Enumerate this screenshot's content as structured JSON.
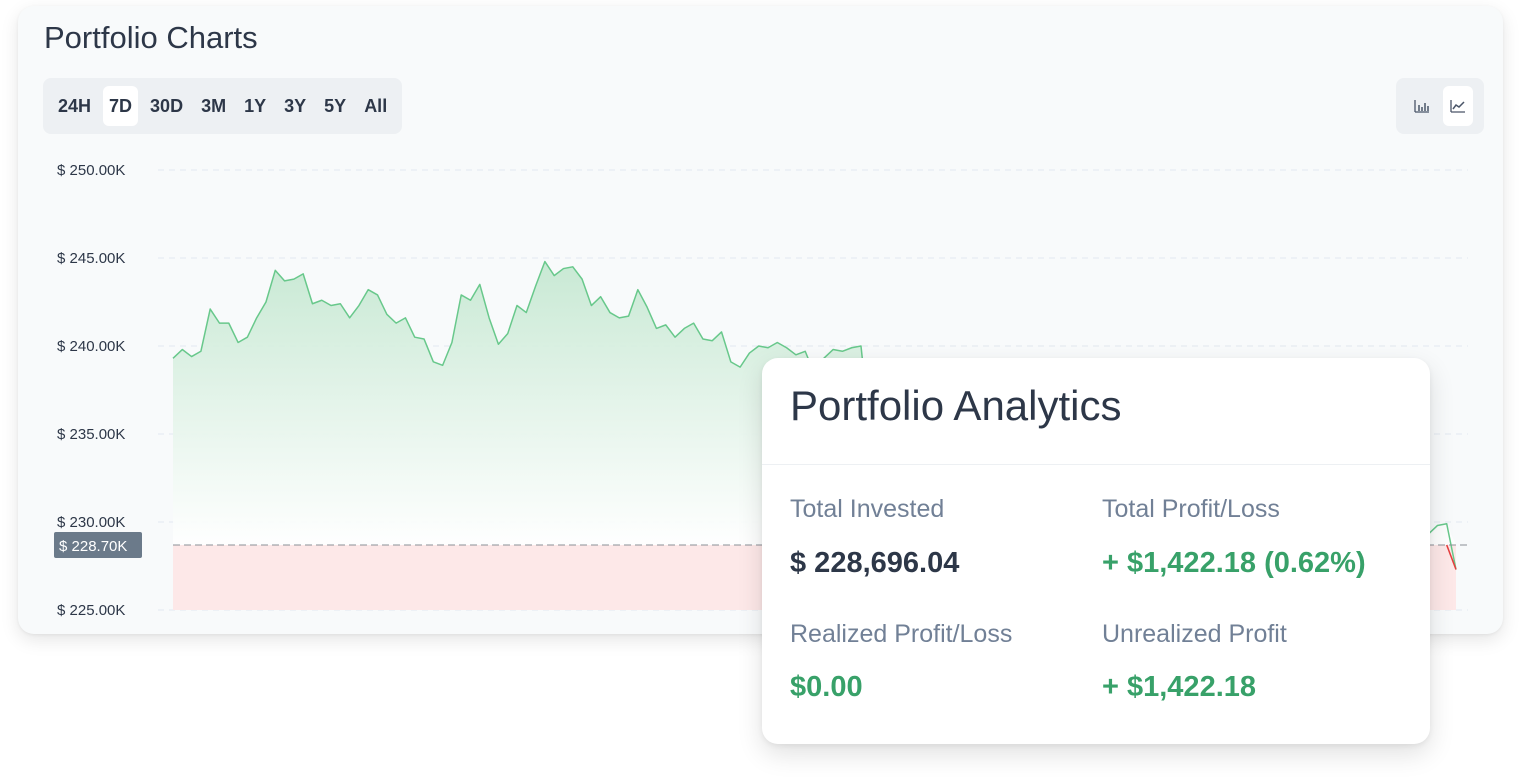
{
  "portfolio_charts": {
    "title": "Portfolio Charts",
    "ranges": [
      {
        "label": "24H",
        "active": false
      },
      {
        "label": "7D",
        "active": true
      },
      {
        "label": "30D",
        "active": false
      },
      {
        "label": "3M",
        "active": false
      },
      {
        "label": "1Y",
        "active": false
      },
      {
        "label": "3Y",
        "active": false
      },
      {
        "label": "5Y",
        "active": false
      },
      {
        "label": "All",
        "active": false
      }
    ],
    "chart_types": [
      {
        "icon": "bar-chart-icon",
        "active": false
      },
      {
        "icon": "line-chart-icon",
        "active": true
      }
    ]
  },
  "chart_data": {
    "type": "area",
    "title": "",
    "xlabel": "",
    "ylabel": "",
    "ylim": [
      225000,
      250000
    ],
    "y_ticks": [
      250000,
      245000,
      240000,
      235000,
      230000,
      225000
    ],
    "y_tick_labels": [
      "$ 250.00K",
      "$ 245.00K",
      "$ 240.00K",
      "$ 235.00K",
      "$ 230.00K",
      "$ 225.00K"
    ],
    "grid": true,
    "reference_value": 228696.04,
    "reference_label": "$ 228.70K",
    "colors": {
      "up_line": "#68c88b",
      "up_fill": "#c6e8d2",
      "down_line": "#e53e3e",
      "down_fill": "#fde8e8"
    },
    "series": [
      {
        "values": [
          239.3,
          239.8,
          239.4,
          239.7,
          242.1,
          241.3,
          241.3,
          240.2,
          240.5,
          241.6,
          242.5,
          244.3,
          243.7,
          243.8,
          244.1,
          242.4,
          242.6,
          242.3,
          242.4,
          241.6,
          242.3,
          243.2,
          242.9,
          241.8,
          241.3,
          241.6,
          240.5,
          240.4,
          239.1,
          238.9,
          240.2,
          242.9,
          242.6,
          243.5,
          241.6,
          240.1,
          240.7,
          242.3,
          241.9,
          243.4,
          244.8,
          244.0,
          244.4,
          244.5,
          243.8,
          242.3,
          242.8,
          241.9,
          241.6,
          241.7,
          243.2,
          242.2,
          241.0,
          241.2,
          240.5,
          241.0,
          241.3,
          240.4,
          240.3,
          240.8,
          239.1,
          238.8,
          239.6,
          240.0,
          239.9,
          240.2,
          239.9,
          239.5,
          239.7,
          238.4,
          239.3,
          239.8,
          239.7,
          239.9,
          240.0,
          235.0,
          235.1,
          235.8,
          234.9,
          232.2,
          229.6,
          230.0,
          229.8,
          229.5,
          229.3,
          229.0,
          228.7,
          228.8,
          229.1,
          228.9,
          228.5,
          228.3,
          228.7,
          228.9,
          229.2,
          229.0,
          228.8,
          228.6,
          228.9,
          229.1,
          229.3,
          229.0,
          228.8,
          228.7,
          228.9,
          229.1,
          229.0,
          228.8,
          228.6,
          228.5,
          228.7,
          228.9,
          229.0,
          229.2,
          229.1,
          228.9,
          228.8,
          228.6,
          228.7,
          228.9,
          229.1,
          229.0,
          228.8,
          228.7,
          228.9,
          229.0,
          229.1,
          229.0,
          228.8,
          228.9,
          229.1,
          229.4,
          229.8,
          229.9,
          229.0,
          229.3,
          229.8,
          229.9,
          227.3
        ]
      }
    ]
  },
  "analytics": {
    "title": "Portfolio Analytics",
    "total_invested_label": "Total Invested",
    "total_invested_value": "$ 228,696.04",
    "total_pl_label": "Total Profit/Loss",
    "total_pl_value": "+ $1,422.18 (0.62%)",
    "realized_label": "Realized Profit/Loss",
    "realized_value": "$0.00",
    "unrealized_label": "Unrealized Profit",
    "unrealized_value": "+ $1,422.18"
  }
}
